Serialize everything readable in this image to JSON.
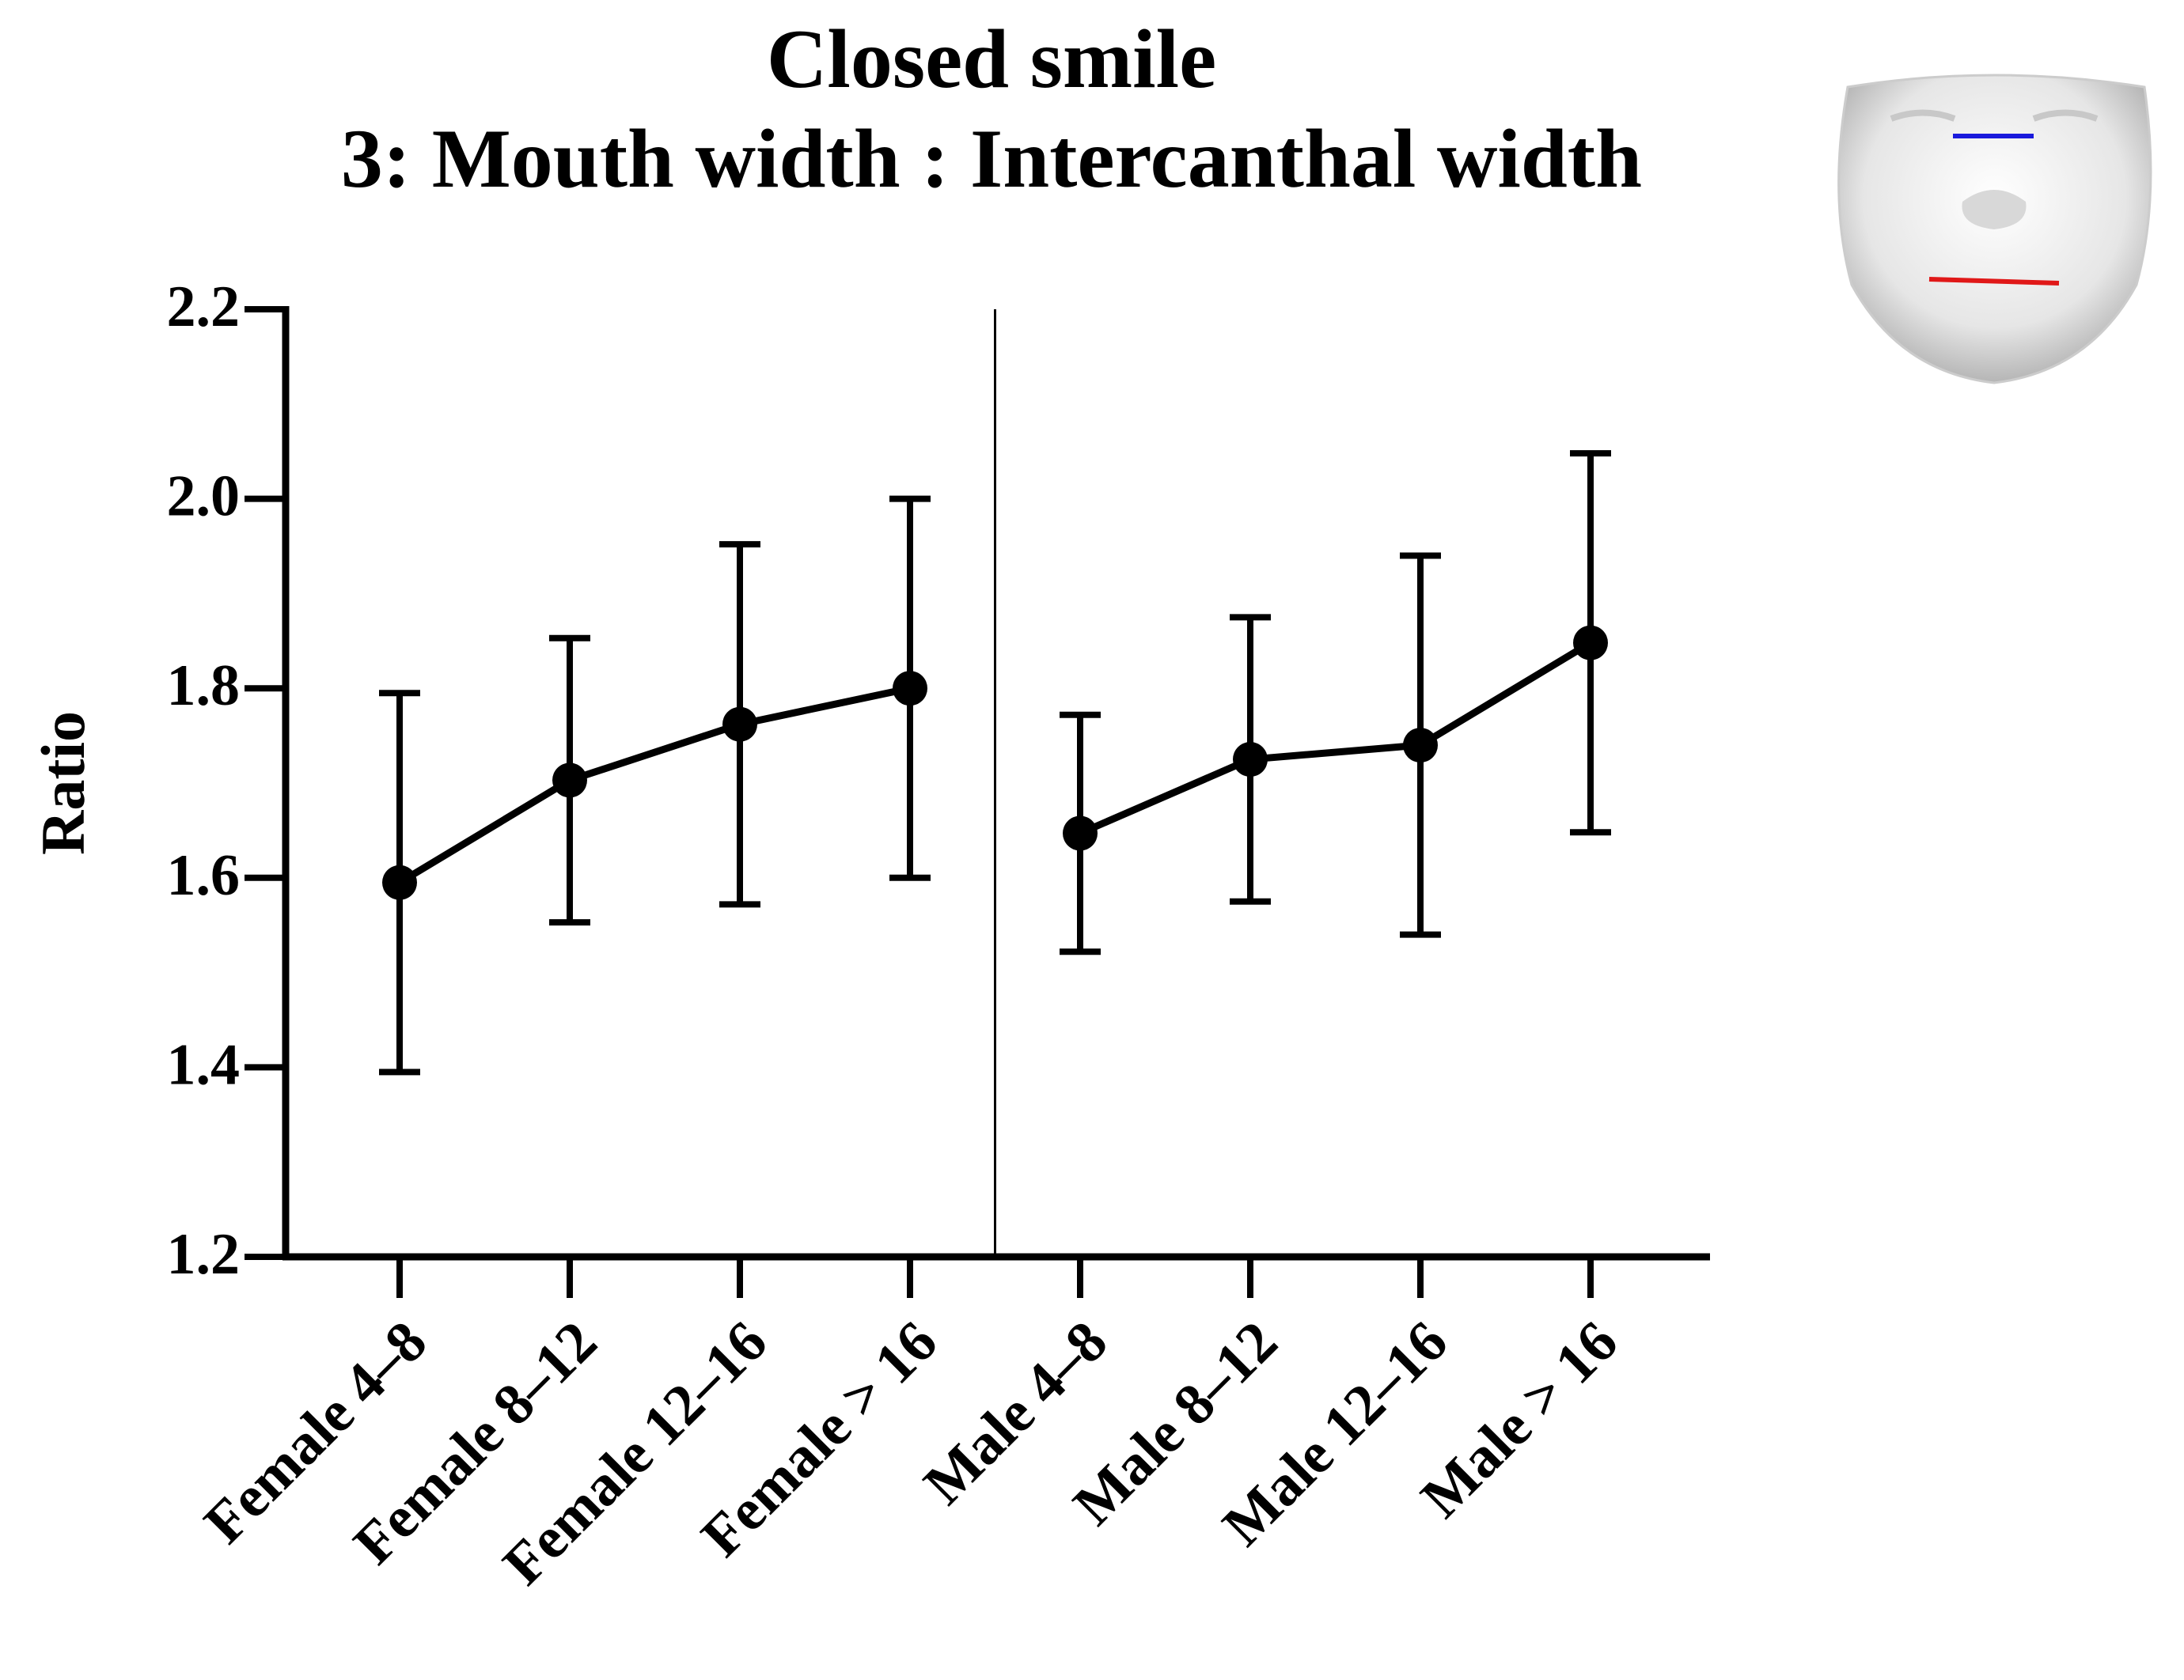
{
  "chart_data": {
    "type": "line",
    "title": "Closed smile",
    "subtitle": "3: Mouth width : Intercanthal width",
    "y_label": "Ratio",
    "categories": [
      "Female 4–8",
      "Female 8–12",
      "Female 12–16",
      "Female > 16",
      "Male 4–8",
      "Male 8–12",
      "Male 12–16",
      "Male > 16"
    ],
    "series": [
      {
        "color": "#000000",
        "values": [
          1.595,
          1.703,
          1.762,
          1.8,
          null,
          null,
          null,
          null
        ],
        "errors": [
          0.2,
          0.15,
          0.19,
          0.2,
          null,
          null,
          null,
          null
        ]
      },
      {
        "color": "#000000",
        "values": [
          null,
          null,
          null,
          null,
          1.647,
          1.725,
          1.74,
          1.848
        ],
        "errors": [
          null,
          null,
          null,
          null,
          0.125,
          0.15,
          0.2,
          0.2
        ]
      }
    ],
    "ylim": [
      1.2,
      2.2
    ],
    "yticks": [
      1.2,
      1.4,
      1.6,
      1.8,
      {
        "value": 2,
        "label": "2.0"
      },
      2.2
    ],
    "grid": false
  }
}
